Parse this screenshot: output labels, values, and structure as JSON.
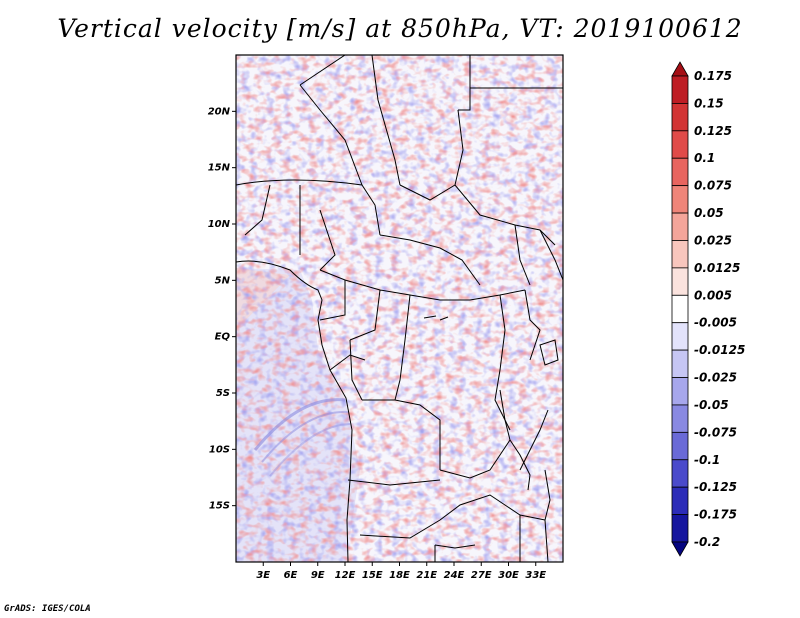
{
  "title": "Vertical velocity [m/s] at 850hPa, VT: 2019100612",
  "credit": "GrADS: IGES/COLA",
  "map": {
    "lon_range": [
      0,
      36
    ],
    "lat_range": [
      -20,
      25
    ],
    "lat_ticks": [
      {
        "value": 20,
        "label": "20N"
      },
      {
        "value": 15,
        "label": "15N"
      },
      {
        "value": 10,
        "label": "10N"
      },
      {
        "value": 5,
        "label": "5N"
      },
      {
        "value": 0,
        "label": "EQ"
      },
      {
        "value": -5,
        "label": "5S"
      },
      {
        "value": -10,
        "label": "10S"
      },
      {
        "value": -15,
        "label": "15S"
      }
    ],
    "lon_ticks": [
      {
        "value": 3,
        "label": "3E"
      },
      {
        "value": 6,
        "label": "6E"
      },
      {
        "value": 9,
        "label": "9E"
      },
      {
        "value": 12,
        "label": "12E"
      },
      {
        "value": 15,
        "label": "15E"
      },
      {
        "value": 18,
        "label": "18E"
      },
      {
        "value": 21,
        "label": "21E"
      },
      {
        "value": 24,
        "label": "24E"
      },
      {
        "value": 27,
        "label": "27E"
      },
      {
        "value": 30,
        "label": "30E"
      },
      {
        "value": 33,
        "label": "33E"
      }
    ]
  },
  "colorbar": {
    "labels": [
      "0.175",
      "0.15",
      "0.125",
      "0.1",
      "0.075",
      "0.05",
      "0.025",
      "0.0125",
      "0.005",
      "-0.005",
      "-0.0125",
      "-0.025",
      "-0.05",
      "-0.075",
      "-0.1",
      "-0.125",
      "-0.175",
      "-0.2"
    ],
    "colors": [
      "#a50f15",
      "#be1d24",
      "#d23434",
      "#e04b49",
      "#e8655f",
      "#ef8579",
      "#f4a59a",
      "#f8c6bd",
      "#fbe3de",
      "#ffffff",
      "#e3e3fb",
      "#c6c6f4",
      "#a7a7ec",
      "#8989e2",
      "#6a6ad7",
      "#4a4acb",
      "#2c2cb8",
      "#16169e",
      "#050580"
    ]
  }
}
